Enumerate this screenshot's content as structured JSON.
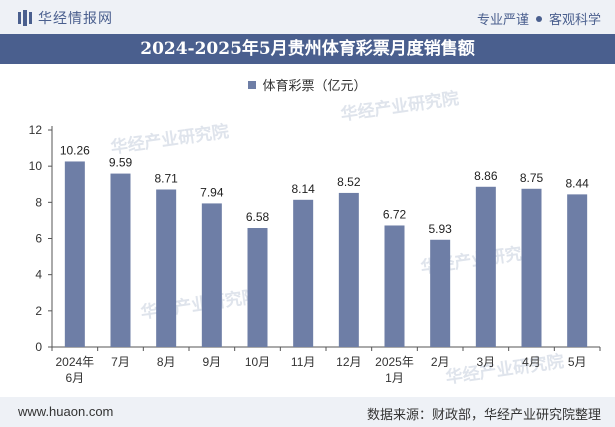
{
  "header": {
    "brand": "华经情报网",
    "tags": [
      "专业严谨",
      "客观科学"
    ]
  },
  "watermark": {
    "text": "华经产业研究院",
    "url": "www.huaon.com"
  },
  "colors": {
    "bar": "#6e7ea6",
    "title_bg": "#4a5f8e",
    "accent": "#4a5f8e"
  },
  "chart_data": {
    "type": "bar",
    "title": "2024-2025年5月贵州体育彩票月度销售额",
    "categories": [
      [
        "2024年",
        "6月"
      ],
      [
        "7月"
      ],
      [
        "8月"
      ],
      [
        "9月"
      ],
      [
        "10月"
      ],
      [
        "11月"
      ],
      [
        "12月"
      ],
      [
        "2025年",
        "1月"
      ],
      [
        "2月"
      ],
      [
        "3月"
      ],
      [
        "4月"
      ],
      [
        "5月"
      ]
    ],
    "series": [
      {
        "name": "体育彩票（亿元）",
        "values": [
          10.26,
          9.59,
          8.71,
          7.94,
          6.58,
          8.14,
          8.52,
          6.72,
          5.93,
          8.86,
          8.75,
          8.44
        ],
        "labels": [
          "10.26",
          "9.59",
          "8.71",
          "7.94",
          "6.58",
          "8.14",
          "8.52",
          "6.72",
          "5.93",
          "8.86",
          "8.75",
          "8.44"
        ]
      }
    ],
    "ylim": [
      0,
      12
    ],
    "yticks": [
      0,
      2,
      4,
      6,
      8,
      10,
      12
    ],
    "xlabel": "",
    "ylabel": "",
    "legend": "top-center",
    "grid": false
  },
  "footer": {
    "left": "www.huaon.com",
    "right": "数据来源：财政部，华经产业研究院整理"
  }
}
